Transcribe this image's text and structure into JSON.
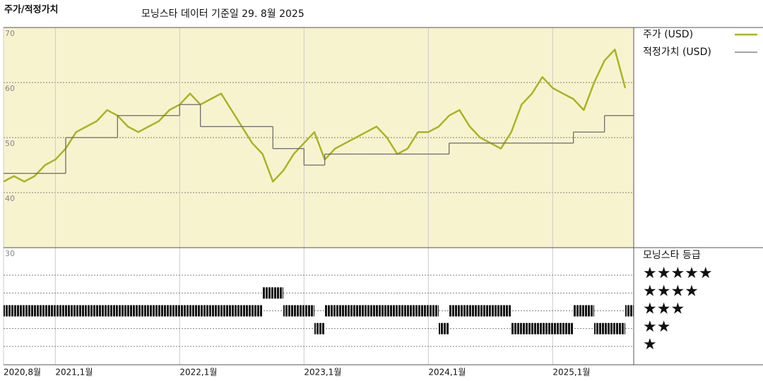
{
  "chart_data": {
    "type": "line",
    "title": "주가/적정가치",
    "subtitle": "모닝스타 데이터 기준일 29. 8월 2025",
    "x": [
      "2020-08",
      "2020-09",
      "2020-10",
      "2020-11",
      "2020-12",
      "2021-01",
      "2021-02",
      "2021-03",
      "2021-04",
      "2021-05",
      "2021-06",
      "2021-07",
      "2021-08",
      "2021-09",
      "2021-10",
      "2021-11",
      "2021-12",
      "2022-01",
      "2022-02",
      "2022-03",
      "2022-04",
      "2022-05",
      "2022-06",
      "2022-07",
      "2022-08",
      "2022-09",
      "2022-10",
      "2022-11",
      "2022-12",
      "2023-01",
      "2023-02",
      "2023-03",
      "2023-04",
      "2023-05",
      "2023-06",
      "2023-07",
      "2023-08",
      "2023-09",
      "2023-10",
      "2023-11",
      "2023-12",
      "2024-01",
      "2024-02",
      "2024-03",
      "2024-04",
      "2024-05",
      "2024-06",
      "2024-07",
      "2024-08",
      "2024-09",
      "2024-10",
      "2024-11",
      "2024-12",
      "2025-01",
      "2025-02",
      "2025-03",
      "2025-04",
      "2025-05",
      "2025-06",
      "2025-07",
      "2025-08"
    ],
    "xticks": [
      {
        "value": "2020-08",
        "label": "2020,8월"
      },
      {
        "value": "2021-01",
        "label": "2021,1월"
      },
      {
        "value": "2022-01",
        "label": "2022,1월"
      },
      {
        "value": "2023-01",
        "label": "2023,1월"
      },
      {
        "value": "2024-01",
        "label": "2024,1월"
      },
      {
        "value": "2025-01",
        "label": "2025,1월"
      }
    ],
    "ylim": [
      30,
      70
    ],
    "yticks": [
      30,
      40,
      50,
      60,
      70
    ],
    "grid": true,
    "series": [
      {
        "name": "주가 (USD)",
        "color": "#aab324",
        "values": [
          42,
          43,
          42,
          43,
          45,
          46,
          48,
          51,
          52,
          53,
          55,
          54,
          52,
          51,
          52,
          53,
          55,
          56,
          58,
          56,
          57,
          58,
          55,
          52,
          49,
          47,
          42,
          44,
          47,
          49,
          51,
          46,
          48,
          49,
          50,
          51,
          52,
          50,
          47,
          48,
          51,
          51,
          52,
          54,
          55,
          52,
          50,
          49,
          48,
          51,
          56,
          58,
          61,
          59,
          58,
          57,
          55,
          60,
          64,
          66,
          59
        ]
      },
      {
        "name": "적정가치 (USD)",
        "color": "#6e6e6e",
        "step": true,
        "values": [
          43.5,
          43.5,
          43.5,
          43.5,
          43.5,
          43.5,
          50,
          50,
          50,
          50,
          50,
          54,
          54,
          54,
          54,
          54,
          54,
          56,
          56,
          52,
          52,
          52,
          52,
          52,
          52,
          52,
          48,
          48,
          48,
          45,
          45,
          47,
          47,
          47,
          47,
          47,
          47,
          47,
          47,
          47,
          47,
          47,
          47,
          49,
          49,
          49,
          49,
          49,
          49,
          49,
          49,
          49,
          49,
          49,
          49,
          51,
          51,
          51,
          54,
          54,
          54
        ]
      }
    ],
    "rating": {
      "title": "모닝스타 등급",
      "levels": [
        "★",
        "★★",
        "★★★",
        "★★★★",
        "★★★★★"
      ],
      "values": [
        3,
        3,
        3,
        3,
        3,
        3,
        3,
        3,
        3,
        3,
        3,
        3,
        3,
        3,
        3,
        3,
        3,
        3,
        3,
        3,
        3,
        3,
        3,
        3,
        3,
        4,
        4,
        3,
        3,
        3,
        2,
        3,
        3,
        3,
        3,
        3,
        3,
        3,
        3,
        3,
        3,
        3,
        2,
        3,
        3,
        3,
        3,
        3,
        3,
        2,
        2,
        2,
        2,
        2,
        2,
        3,
        3,
        2,
        2,
        2,
        3
      ]
    }
  }
}
